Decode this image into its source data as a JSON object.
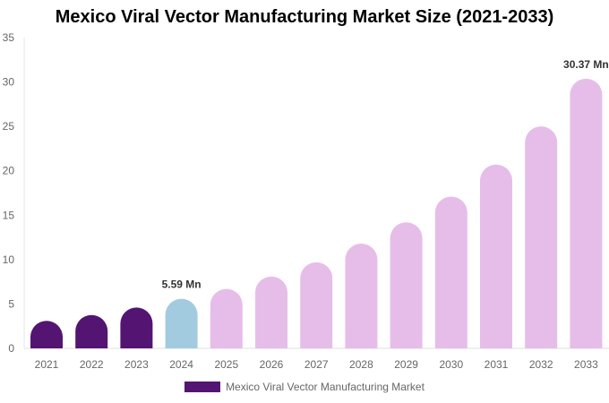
{
  "chart_data": {
    "type": "bar",
    "title": "Mexico Viral Vector Manufacturing Market Size (2021-2033)",
    "categories": [
      "2021",
      "2022",
      "2023",
      "2024",
      "2025",
      "2026",
      "2027",
      "2028",
      "2029",
      "2030",
      "2031",
      "2032",
      "2033"
    ],
    "series": [
      {
        "name": "Mexico Viral Vector Manufacturing Market",
        "values": [
          3.1,
          3.76,
          4.6,
          5.59,
          6.7,
          8.1,
          9.7,
          11.8,
          14.2,
          17.1,
          20.7,
          25.0,
          30.37
        ]
      }
    ],
    "data_labels": {
      "3": "5.59 Mn",
      "12": "30.37 Mn"
    },
    "ylim": [
      0,
      35
    ],
    "yticks": [
      0,
      5,
      10,
      15,
      20,
      25,
      30,
      35
    ],
    "grid": false,
    "legend": "bottom",
    "colors": {
      "historical": "#541472",
      "base_year": "#a3cbe0",
      "forecast": "#e6bde9"
    }
  }
}
